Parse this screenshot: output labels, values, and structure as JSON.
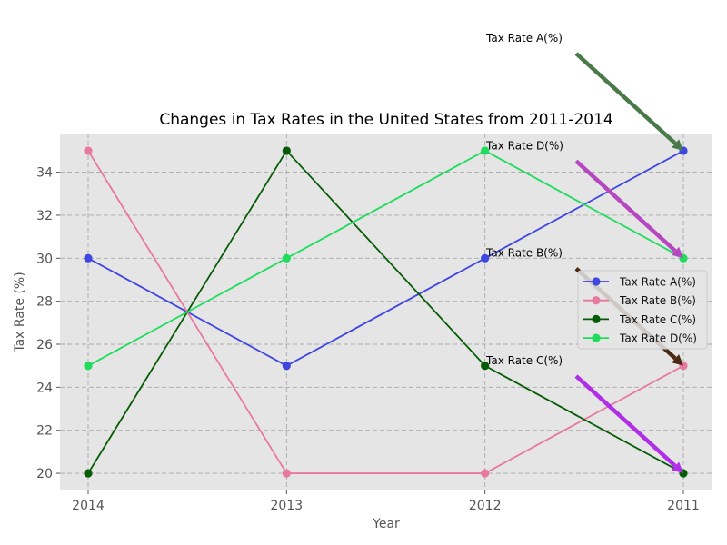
{
  "chart_data": {
    "type": "line",
    "title": "Changes in Tax Rates in the United States from 2011-2014",
    "xlabel": "Year",
    "ylabel": "Tax Rate (%)",
    "categories": [
      "2014",
      "2013",
      "2012",
      "2011"
    ],
    "ylim": [
      19.2,
      35.8
    ],
    "yticks": [
      20,
      22,
      24,
      26,
      28,
      30,
      32,
      34
    ],
    "grid": true,
    "legend_position": "center-right",
    "series": [
      {
        "name": "Tax Rate A(%)",
        "values": [
          30,
          25,
          30,
          35
        ],
        "color": "#4046e0"
      },
      {
        "name": "Tax Rate B(%)",
        "values": [
          35,
          20,
          20,
          25
        ],
        "color": "#e8799e"
      },
      {
        "name": "Tax Rate C(%)",
        "values": [
          20,
          35,
          25,
          20
        ],
        "color": "#065c06"
      },
      {
        "name": "Tax Rate D(%)",
        "values": [
          25,
          30,
          35,
          30
        ],
        "color": "#1fdc5c"
      }
    ],
    "annotations": [
      {
        "text": "Tax Rate A(%)",
        "category": "2011",
        "value": 35,
        "arrow_color": "#4a7a4a"
      },
      {
        "text": "Tax Rate D(%)",
        "category": "2011",
        "value": 30,
        "arrow_color": "#b548c0"
      },
      {
        "text": "Tax Rate B(%)",
        "category": "2011",
        "value": 25,
        "arrow_color": "#4a2a10"
      },
      {
        "text": "Tax Rate C(%)",
        "category": "2011",
        "value": 20,
        "arrow_color": "#b02ee8"
      }
    ]
  }
}
